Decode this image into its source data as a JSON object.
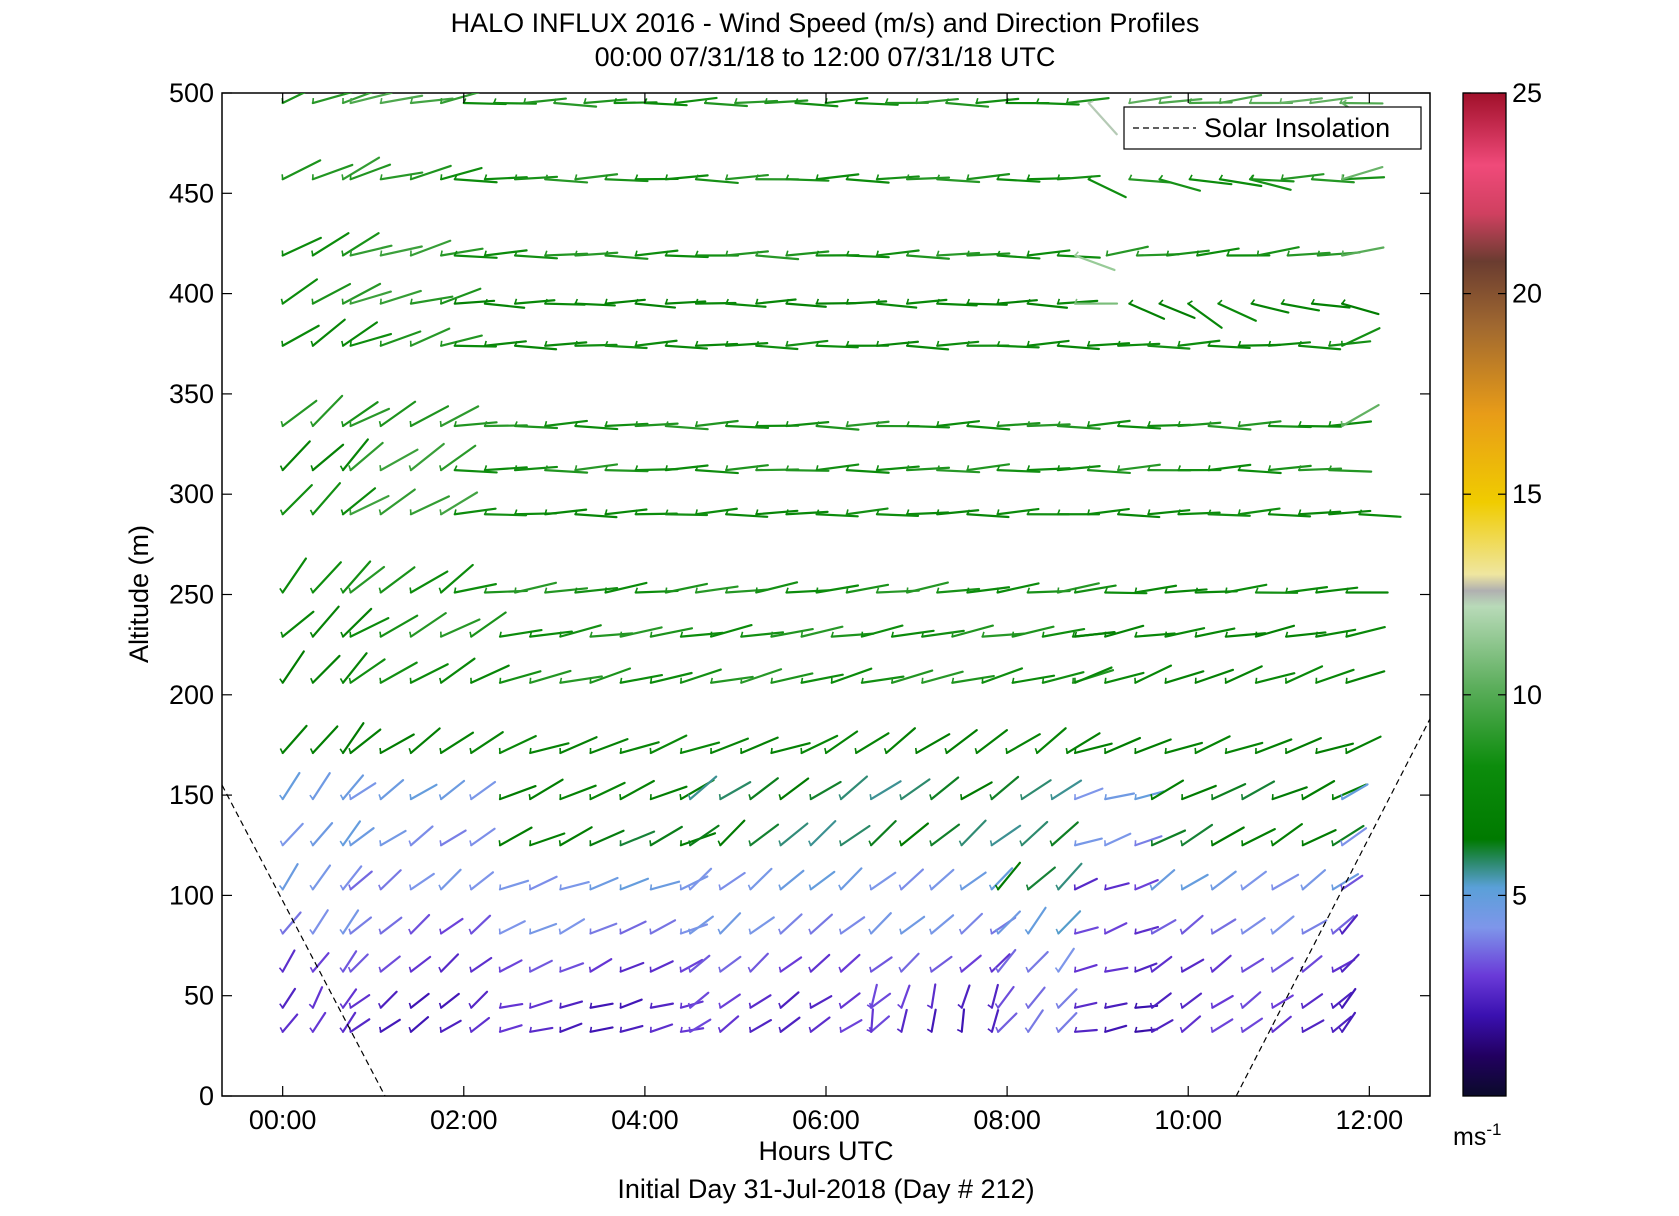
{
  "chart_data": {
    "type": "wind-barb",
    "title": "HALO INFLUX 2016 - Wind Speed (m/s) and Direction Profiles",
    "subtitle": "00:00 07/31/18 to 12:00 07/31/18  UTC",
    "xlabel": "Hours UTC",
    "ylabel": "Altitude (m)",
    "footer": "Initial Day 31-Jul-2018 (Day # 212)",
    "xlim": [
      -0.67,
      12.67
    ],
    "ylim": [
      0,
      500
    ],
    "x_ticks": [
      0,
      2,
      4,
      6,
      8,
      10,
      12
    ],
    "x_tick_labels": [
      "00:00",
      "02:00",
      "04:00",
      "06:00",
      "08:00",
      "10:00",
      "12:00"
    ],
    "y_ticks": [
      0,
      50,
      100,
      150,
      200,
      250,
      300,
      350,
      400,
      450,
      500
    ],
    "y_tick_labels": [
      "0",
      "50",
      "100",
      "150",
      "200",
      "250",
      "300",
      "350",
      "400",
      "450",
      "500"
    ],
    "grid": false,
    "legend": {
      "position": "top-right",
      "entries": [
        "Solar Insolation"
      ]
    },
    "colorbar": {
      "min": 0,
      "max": 25,
      "ticks": [
        5,
        10,
        15,
        20,
        25
      ],
      "tick_labels": [
        "5",
        "10",
        "15",
        "20",
        "25"
      ],
      "unit_base": "ms",
      "unit_exp": "-1",
      "stops": [
        [
          0,
          "#0a0a2a"
        ],
        [
          1.0,
          "#220060"
        ],
        [
          2.0,
          "#3a10b0"
        ],
        [
          3.0,
          "#6a3ad8"
        ],
        [
          4.2,
          "#7e96ea"
        ],
        [
          5.2,
          "#5aa0d8"
        ],
        [
          5.8,
          "#2e8a70"
        ],
        [
          6.4,
          "#007a00"
        ],
        [
          8.2,
          "#0c8c0c"
        ],
        [
          10.2,
          "#5cae5c"
        ],
        [
          12.2,
          "#b8dab8"
        ],
        [
          12.6,
          "#b0b0b0"
        ],
        [
          13.0,
          "#efe6a0"
        ],
        [
          14.8,
          "#f0cc00"
        ],
        [
          17.0,
          "#e89c18"
        ],
        [
          19.2,
          "#a06830"
        ],
        [
          20.8,
          "#6a3c30"
        ],
        [
          22.0,
          "#d04060"
        ],
        [
          23.2,
          "#f04a7a"
        ],
        [
          25.0,
          "#a0102a"
        ]
      ]
    },
    "solar_insolation": [
      {
        "x": [
          -0.67,
          1.13
        ],
        "y": [
          155,
          0
        ]
      },
      {
        "x": [
          10.53,
          12.67
        ],
        "y": [
          0,
          188
        ]
      }
    ],
    "profiles": [
      {
        "alt": 495,
        "segments": [
          [
            0.0,
            0.75,
            110,
            9.0
          ],
          [
            0.75,
            2.0,
            100,
            9.5
          ],
          [
            2.0,
            8.75,
            91,
            8.5
          ],
          [
            8.9,
            8.95,
            45,
            12.0
          ],
          [
            9.35,
            11.7,
            95,
            10.0
          ],
          [
            11.7,
            12.0,
            60,
            10.5
          ]
        ]
      },
      {
        "alt": 457,
        "segments": [
          [
            0.0,
            0.75,
            115,
            9.0
          ],
          [
            0.75,
            1.9,
            105,
            8.5
          ],
          [
            1.9,
            8.75,
            91,
            8.5
          ],
          [
            8.9,
            8.95,
            70,
            8.0
          ],
          [
            9.35,
            10.7,
            80,
            8.5
          ],
          [
            10.7,
            11.7,
            91,
            8.5
          ],
          [
            11.7,
            12.0,
            105,
            10.5
          ]
        ]
      },
      {
        "alt": 419,
        "segments": [
          [
            0.0,
            0.75,
            120,
            8.5
          ],
          [
            0.75,
            1.9,
            105,
            9.0
          ],
          [
            1.9,
            8.75,
            91,
            8.5
          ],
          [
            8.75,
            8.95,
            75,
            11.5
          ],
          [
            9.1,
            11.7,
            96,
            8.5
          ],
          [
            11.7,
            12.0,
            95,
            10.0
          ]
        ]
      },
      {
        "alt": 395,
        "segments": [
          [
            0.0,
            0.75,
            120,
            8.5
          ],
          [
            0.75,
            1.9,
            105,
            9.0
          ],
          [
            1.9,
            8.75,
            90,
            7.5
          ],
          [
            8.75,
            9.0,
            85,
            10.5
          ],
          [
            9.35,
            10.0,
            65,
            7.0
          ],
          [
            10.0,
            10.35,
            60,
            8.0
          ],
          [
            10.7,
            11.7,
            80,
            7.0
          ]
        ]
      },
      {
        "alt": 374,
        "segments": [
          [
            0.0,
            0.75,
            125,
            8.0
          ],
          [
            0.75,
            1.9,
            110,
            8.5
          ],
          [
            1.9,
            11.7,
            91,
            8.0
          ],
          [
            11.7,
            12.0,
            110,
            8.0
          ]
        ]
      },
      {
        "alt": 334,
        "segments": [
          [
            0.0,
            0.75,
            130,
            8.5
          ],
          [
            0.75,
            1.9,
            120,
            9.0
          ],
          [
            1.9,
            11.7,
            91,
            8.5
          ],
          [
            11.7,
            12.0,
            120,
            10.5
          ]
        ]
      },
      {
        "alt": 312,
        "segments": [
          [
            0.0,
            0.75,
            135,
            7.5
          ],
          [
            0.75,
            1.9,
            125,
            9.0
          ],
          [
            1.9,
            11.7,
            92,
            8.5
          ]
        ]
      },
      {
        "alt": 290,
        "segments": [
          [
            0.0,
            0.75,
            135,
            8.0
          ],
          [
            0.75,
            1.9,
            120,
            9.5
          ],
          [
            1.9,
            12.0,
            92,
            8.0
          ]
        ]
      },
      {
        "alt": 251,
        "segments": [
          [
            0.0,
            0.75,
            140,
            8.0
          ],
          [
            0.75,
            1.9,
            125,
            8.5
          ],
          [
            1.9,
            8.75,
            98,
            8.5
          ],
          [
            8.75,
            12.0,
            95,
            8.0
          ]
        ]
      },
      {
        "alt": 229,
        "segments": [
          [
            0.0,
            0.75,
            135,
            7.5
          ],
          [
            0.75,
            2.4,
            120,
            8.5
          ],
          [
            2.4,
            8.75,
            100,
            8.5
          ],
          [
            8.75,
            12.0,
            100,
            7.5
          ]
        ]
      },
      {
        "alt": 206,
        "segments": [
          [
            0.0,
            0.75,
            140,
            7.0
          ],
          [
            0.75,
            2.4,
            120,
            8.0
          ],
          [
            2.4,
            8.75,
            104,
            8.5
          ],
          [
            8.75,
            12.0,
            110,
            7.5
          ]
        ]
      },
      {
        "alt": 171,
        "segments": [
          [
            0.0,
            0.75,
            140,
            6.5
          ],
          [
            0.75,
            2.4,
            125,
            7.0
          ],
          [
            2.4,
            6.0,
            110,
            7.5
          ],
          [
            6.0,
            8.75,
            125,
            7.0
          ],
          [
            8.75,
            12.0,
            110,
            7.0
          ]
        ]
      },
      {
        "alt": 148,
        "segments": [
          [
            0.0,
            0.75,
            145,
            5.0
          ],
          [
            0.75,
            2.4,
            125,
            4.5
          ],
          [
            2.4,
            4.5,
            115,
            7.0
          ],
          [
            4.5,
            8.75,
            125,
            6.0
          ],
          [
            8.75,
            9.6,
            105,
            4.5
          ],
          [
            9.6,
            11.7,
            115,
            6.5
          ],
          [
            11.7,
            12.0,
            125,
            4.5
          ]
        ]
      },
      {
        "alt": 125,
        "segments": [
          [
            0.0,
            0.75,
            140,
            4.5
          ],
          [
            0.75,
            2.4,
            125,
            4.3
          ],
          [
            2.4,
            4.5,
            115,
            6.5
          ],
          [
            4.5,
            8.75,
            130,
            6.0
          ],
          [
            8.75,
            9.6,
            110,
            4.0
          ],
          [
            9.6,
            11.7,
            120,
            6.5
          ],
          [
            11.7,
            12.0,
            120,
            4.5
          ]
        ]
      },
      {
        "alt": 103,
        "segments": [
          [
            0.0,
            0.75,
            145,
            4.5
          ],
          [
            0.75,
            2.4,
            130,
            4.0
          ],
          [
            2.4,
            4.5,
            110,
            4.5
          ],
          [
            4.5,
            7.9,
            130,
            4.5
          ],
          [
            7.9,
            8.75,
            135,
            6.0
          ],
          [
            8.75,
            9.6,
            110,
            3.0
          ],
          [
            9.6,
            11.7,
            125,
            4.5
          ],
          [
            11.7,
            12.0,
            130,
            3.0
          ]
        ]
      },
      {
        "alt": 81,
        "segments": [
          [
            0.0,
            0.75,
            145,
            4.0
          ],
          [
            0.75,
            2.4,
            130,
            3.5
          ],
          [
            2.4,
            4.5,
            115,
            4.0
          ],
          [
            4.5,
            7.9,
            130,
            4.2
          ],
          [
            7.9,
            8.75,
            140,
            5.0
          ],
          [
            8.75,
            9.6,
            110,
            2.8
          ],
          [
            9.6,
            11.7,
            125,
            3.8
          ],
          [
            11.7,
            12.0,
            135,
            2.8
          ]
        ]
      },
      {
        "alt": 62,
        "segments": [
          [
            0.0,
            0.75,
            145,
            3.0
          ],
          [
            0.75,
            2.4,
            130,
            3.0
          ],
          [
            2.4,
            4.5,
            115,
            3.0
          ],
          [
            4.5,
            7.9,
            130,
            3.2
          ],
          [
            7.9,
            8.75,
            140,
            4.0
          ],
          [
            8.75,
            9.6,
            105,
            2.5
          ],
          [
            9.6,
            11.7,
            125,
            3.0
          ],
          [
            11.7,
            12.0,
            140,
            2.8
          ]
        ]
      },
      {
        "alt": 44,
        "segments": [
          [
            0.0,
            0.75,
            150,
            2.5
          ],
          [
            0.75,
            2.4,
            130,
            2.5
          ],
          [
            2.4,
            4.5,
            105,
            2.5
          ],
          [
            4.5,
            6.5,
            125,
            2.8
          ],
          [
            6.5,
            7.9,
            165,
            2.8
          ],
          [
            7.9,
            8.75,
            140,
            3.5
          ],
          [
            8.75,
            9.6,
            100,
            2.3
          ],
          [
            9.6,
            11.7,
            125,
            2.8
          ],
          [
            11.7,
            12.0,
            145,
            2.6
          ]
        ]
      },
      {
        "alt": 32,
        "segments": [
          [
            0.0,
            0.75,
            145,
            2.5
          ],
          [
            0.75,
            2.4,
            125,
            2.5
          ],
          [
            2.4,
            4.5,
            105,
            2.5
          ],
          [
            4.5,
            6.5,
            125,
            2.8
          ],
          [
            6.5,
            7.9,
            170,
            2.5
          ],
          [
            7.9,
            8.75,
            140,
            3.5
          ],
          [
            8.75,
            9.6,
            100,
            2.3
          ],
          [
            9.6,
            11.7,
            125,
            2.8
          ],
          [
            11.7,
            12.0,
            140,
            2.6
          ]
        ]
      }
    ],
    "time_step_hours": 0.333
  }
}
